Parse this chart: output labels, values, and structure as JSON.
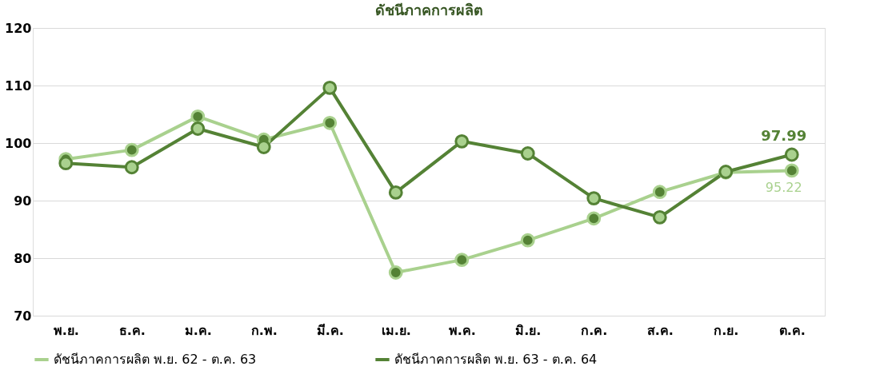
{
  "chart_data": {
    "type": "line",
    "title": "ดัชนีภาคการผลิต",
    "categories": [
      "พ.ย.",
      "ธ.ค.",
      "ม.ค.",
      "ก.พ.",
      "มี.ค.",
      "เม.ย.",
      "พ.ค.",
      "มิ.ย.",
      "ก.ค.",
      "ส.ค.",
      "ก.ย.",
      "ต.ค."
    ],
    "series": [
      {
        "name": "ดัชนีภาคการผลิต พ.ย. 62 - ต.ค. 63",
        "color": "#a9d18e",
        "values": [
          97.2,
          98.8,
          104.6,
          100.6,
          103.5,
          77.5,
          79.7,
          83.1,
          86.9,
          91.5,
          94.9,
          95.22
        ],
        "value_labels": [
          null,
          null,
          null,
          null,
          null,
          null,
          null,
          null,
          null,
          null,
          null,
          "95.22"
        ]
      },
      {
        "name": "ดัชนีภาคการผลิต พ.ย. 63 - ต.ค. 64",
        "color": "#548235",
        "values": [
          96.5,
          95.8,
          102.5,
          99.3,
          109.6,
          91.4,
          100.3,
          98.2,
          90.4,
          87.1,
          95.0,
          97.99
        ],
        "value_labels": [
          null,
          null,
          null,
          null,
          null,
          null,
          null,
          null,
          null,
          null,
          null,
          "97.99"
        ]
      }
    ],
    "ylim": [
      70,
      120
    ],
    "yticks": [
      70,
      80,
      90,
      100,
      110,
      120
    ],
    "grid": "y",
    "legend": "bottom",
    "marker": "circle"
  }
}
